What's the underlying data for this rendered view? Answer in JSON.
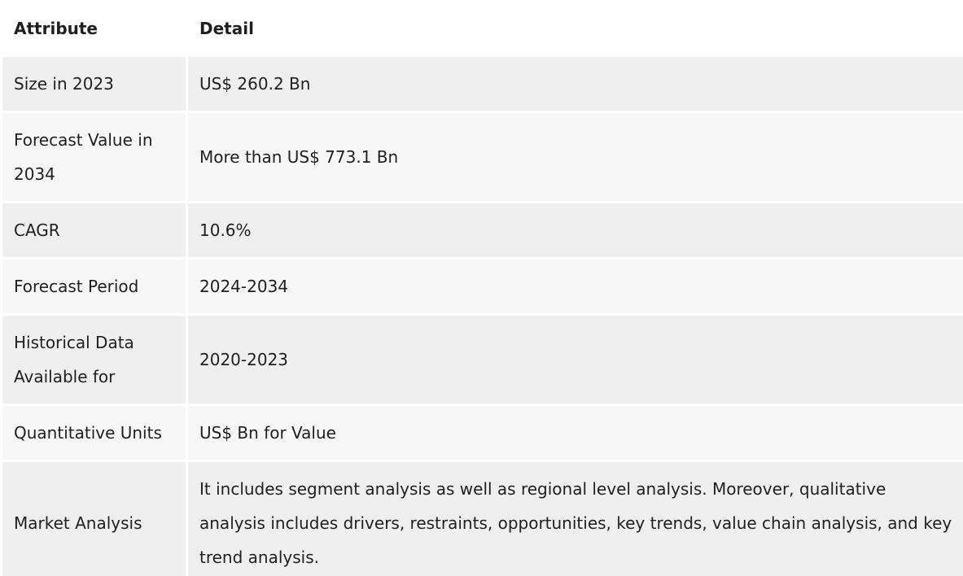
{
  "table": {
    "headers": {
      "attribute": "Attribute",
      "detail": "Detail"
    },
    "rows": [
      {
        "attribute": "Size in 2023",
        "detail": "US$ 260.2 Bn"
      },
      {
        "attribute": "Forecast Value in 2034",
        "detail": "More than US$ 773.1 Bn"
      },
      {
        "attribute": "CAGR",
        "detail": "10.6%"
      },
      {
        "attribute": "Forecast Period",
        "detail": "2024-2034"
      },
      {
        "attribute": "Historical Data Available for",
        "detail": "2020-2023"
      },
      {
        "attribute": "Quantitative Units",
        "detail": "US$ Bn for Value"
      },
      {
        "attribute": "Market Analysis",
        "detail": "It includes segment analysis as well as regional level analysis. Moreover, qualitative analysis includes drivers, restraints, opportunities, key trends, value chain analysis, and key trend analysis."
      }
    ]
  }
}
